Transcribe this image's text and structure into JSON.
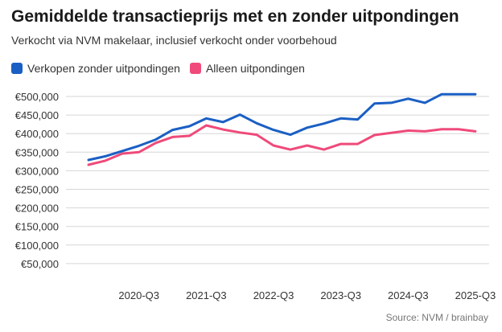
{
  "header": {
    "title": "Gemiddelde transactieprijs met en zonder uitpondingen",
    "subtitle": "Verkocht via NVM makelaar, inclusief verkocht onder voorbehoud"
  },
  "source": "Source: NVM / brainbay",
  "chart_data": {
    "type": "line",
    "title": "Gemiddelde transactieprijs met en zonder uitpondingen",
    "subtitle": "Verkocht via NVM makelaar, inclusief verkocht onder voorbehoud",
    "xlabel": "",
    "ylabel": "",
    "x": [
      "2019-Q4",
      "2020-Q1",
      "2020-Q2",
      "2020-Q3",
      "2020-Q4",
      "2021-Q1",
      "2021-Q2",
      "2021-Q3",
      "2021-Q4",
      "2022-Q1",
      "2022-Q2",
      "2022-Q3",
      "2022-Q4",
      "2023-Q1",
      "2023-Q2",
      "2023-Q3",
      "2023-Q4",
      "2024-Q1",
      "2024-Q2",
      "2024-Q3",
      "2024-Q4",
      "2025-Q1",
      "2025-Q2",
      "2025-Q3"
    ],
    "x_tick_labels": [
      "2020-Q3",
      "2021-Q3",
      "2022-Q3",
      "2023-Q3",
      "2024-Q3",
      "2025-Q3"
    ],
    "y_ticks": [
      50000,
      100000,
      150000,
      200000,
      250000,
      300000,
      350000,
      400000,
      450000,
      500000
    ],
    "y_tick_labels": [
      "€50,000",
      "€100,000",
      "€150,000",
      "€200,000",
      "€250,000",
      "€300,000",
      "€350,000",
      "€400,000",
      "€450,000",
      "€500,000"
    ],
    "ylim": [
      0,
      500000
    ],
    "grid": true,
    "legend_position": "top-left",
    "series": [
      {
        "name": "Verkopen zonder uitpondingen",
        "color": "#1a5fc4",
        "values": [
          329000,
          339000,
          353000,
          367000,
          384000,
          410000,
          420000,
          441000,
          431000,
          451000,
          428000,
          410000,
          397000,
          416000,
          427000,
          441000,
          438000,
          481000,
          483000,
          494000,
          483000,
          506000,
          506000,
          506000
        ]
      },
      {
        "name": "Alleen uitpondingen",
        "color": "#ef4a7a",
        "values": [
          316000,
          327000,
          346000,
          350000,
          375000,
          391000,
          394000,
          422000,
          411000,
          403000,
          397000,
          368000,
          357000,
          368000,
          357000,
          372000,
          372000,
          396000,
          402000,
          408000,
          406000,
          412000,
          412000,
          406000
        ]
      }
    ]
  }
}
